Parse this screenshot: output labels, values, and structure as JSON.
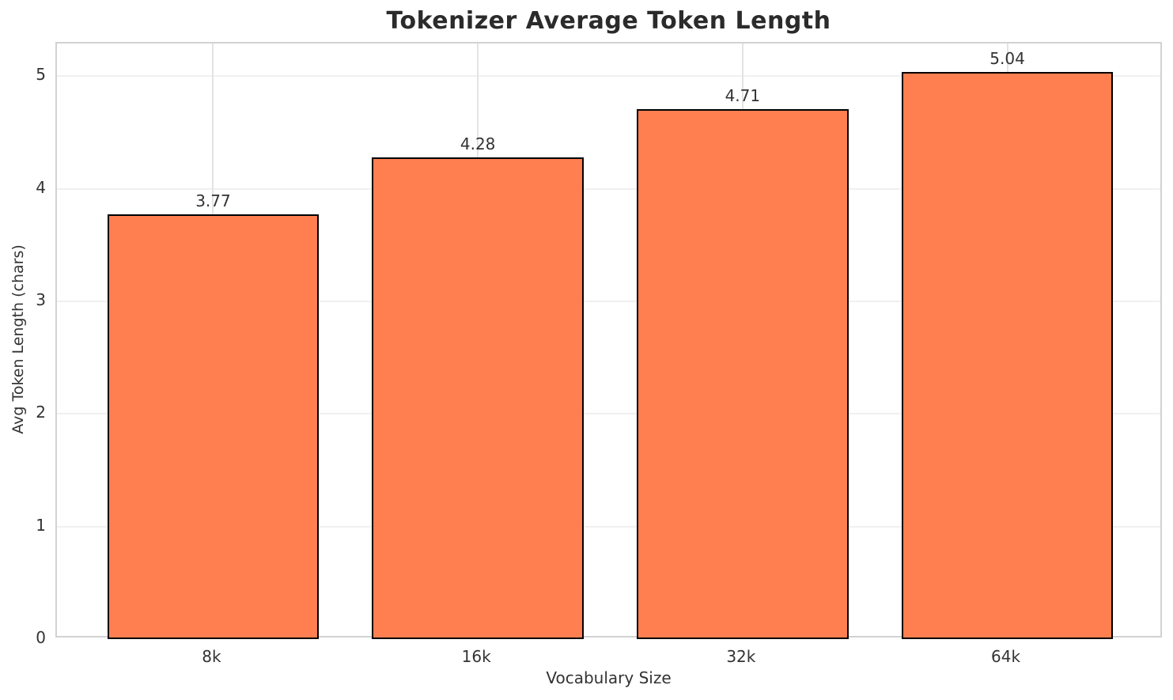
{
  "chart_data": {
    "type": "bar",
    "title": "Tokenizer Average Token Length",
    "xlabel": "Vocabulary Size",
    "ylabel": "Avg Token Length (chars)",
    "categories": [
      "8k",
      "16k",
      "32k",
      "64k"
    ],
    "values": [
      3.77,
      4.28,
      4.71,
      5.04
    ],
    "value_labels": [
      "3.77",
      "4.28",
      "4.71",
      "5.04"
    ],
    "yticks": [
      0,
      1,
      2,
      3,
      4,
      5
    ],
    "ylim": [
      0,
      5.29
    ],
    "bar_width_fraction": 0.8,
    "x_edge_margin": 0.59,
    "grid": true,
    "legend_position": "none",
    "colors": {
      "bar_fill": "#FF7F50",
      "bar_edge": "#000000",
      "grid_horizontal": "#f0f0f0",
      "grid_vertical": "#e3e3e3",
      "spine": "#d2d2d2",
      "tick_text": "#333333",
      "title_text": "#2b2b2b"
    }
  }
}
